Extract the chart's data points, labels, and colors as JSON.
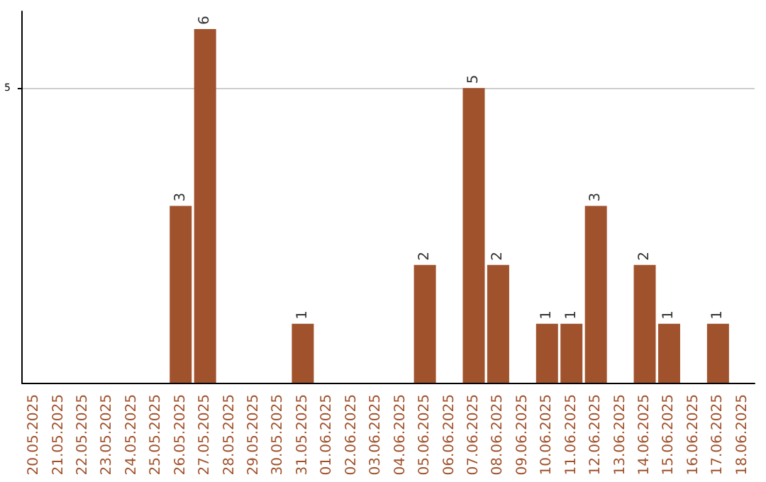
{
  "chart_data": {
    "type": "bar",
    "categories": [
      "20.05.2025",
      "21.05.2025",
      "22.05.2025",
      "23.05.2025",
      "24.05.2025",
      "25.05.2025",
      "26.05.2025",
      "27.05.2025",
      "28.05.2025",
      "29.05.2025",
      "30.05.2025",
      "31.05.2025",
      "01.06.2025",
      "02.06.2025",
      "03.06.2025",
      "04.06.2025",
      "05.06.2025",
      "06.06.2025",
      "07.06.2025",
      "08.06.2025",
      "09.06.2025",
      "10.06.2025",
      "11.06.2025",
      "12.06.2025",
      "13.06.2025",
      "14.06.2025",
      "15.06.2025",
      "16.06.2025",
      "17.06.2025",
      "18.06.2025"
    ],
    "values": [
      0,
      0,
      0,
      0,
      0,
      0,
      3,
      6,
      0,
      0,
      0,
      1,
      0,
      0,
      0,
      0,
      2,
      0,
      5,
      2,
      0,
      1,
      1,
      3,
      0,
      2,
      1,
      0,
      1,
      0
    ],
    "value_labels": [
      null,
      null,
      null,
      null,
      null,
      null,
      "3",
      "6",
      null,
      null,
      null,
      "1",
      null,
      null,
      null,
      null,
      "2",
      null,
      "5",
      "2",
      null,
      "1",
      "1",
      "3",
      null,
      "2",
      "1",
      null,
      "1",
      null
    ],
    "color": "#a0522d",
    "ylim": [
      0,
      6.3
    ],
    "yticks": [
      5
    ],
    "grid": "y"
  }
}
